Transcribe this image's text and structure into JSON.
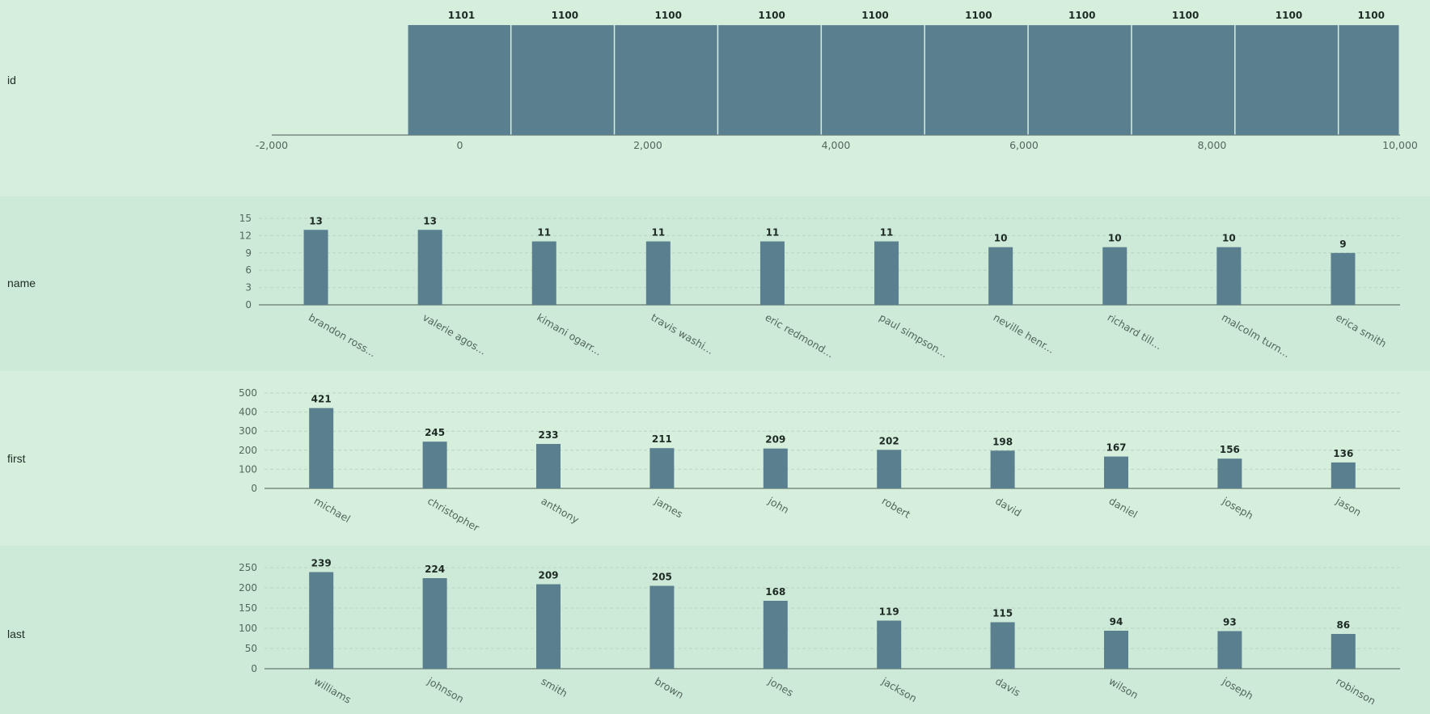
{
  "colors": {
    "bar": "#5a8090",
    "band_a": "#d6efdd",
    "band_b": "#cde9d7"
  },
  "chart_data": [
    {
      "type": "bar",
      "row_label": "id",
      "title": "",
      "xlim": [
        -2000,
        10000
      ],
      "x_ticks": [
        -2000,
        0,
        2000,
        4000,
        6000,
        8000,
        10000
      ],
      "x_tick_labels": [
        "-2,000",
        "0",
        "2,000",
        "4,000",
        "6,000",
        "8,000",
        "10,000"
      ],
      "bins": [
        {
          "start": -550,
          "end": 550,
          "value": 1101
        },
        {
          "start": 550,
          "end": 1650,
          "value": 1100
        },
        {
          "start": 1650,
          "end": 2750,
          "value": 1100
        },
        {
          "start": 2750,
          "end": 3850,
          "value": 1100
        },
        {
          "start": 3850,
          "end": 4950,
          "value": 1100
        },
        {
          "start": 4950,
          "end": 6050,
          "value": 1100
        },
        {
          "start": 6050,
          "end": 7150,
          "value": 1100
        },
        {
          "start": 7150,
          "end": 8250,
          "value": 1100
        },
        {
          "start": 8250,
          "end": 9350,
          "value": 1100
        },
        {
          "start": 9350,
          "end": 10000,
          "value": 1100
        }
      ],
      "grid": false
    },
    {
      "type": "bar",
      "row_label": "name",
      "title": "",
      "categories": [
        "brandon ross...",
        "valerie agos...",
        "kimani ogarr...",
        "travis washi...",
        "eric redmond...",
        "paul simpson...",
        "neville henr...",
        "richard till...",
        "malcolm turn...",
        "erica smith"
      ],
      "values": [
        13,
        13,
        11,
        11,
        11,
        11,
        10,
        10,
        10,
        9
      ],
      "ylim": [
        0,
        15
      ],
      "y_ticks": [
        0,
        3,
        6,
        9,
        12,
        15
      ],
      "grid": true
    },
    {
      "type": "bar",
      "row_label": "first",
      "title": "",
      "categories": [
        "michael",
        "christopher",
        "anthony",
        "james",
        "john",
        "robert",
        "david",
        "daniel",
        "joseph",
        "jason"
      ],
      "values": [
        421,
        245,
        233,
        211,
        209,
        202,
        198,
        167,
        156,
        136
      ],
      "ylim": [
        0,
        500
      ],
      "y_ticks": [
        0,
        100,
        200,
        300,
        400,
        500
      ],
      "grid": true
    },
    {
      "type": "bar",
      "row_label": "last",
      "title": "",
      "categories": [
        "williams",
        "johnson",
        "smith",
        "brown",
        "jones",
        "jackson",
        "davis",
        "wilson",
        "joseph",
        "robinson"
      ],
      "values": [
        239,
        224,
        209,
        205,
        168,
        119,
        115,
        94,
        93,
        86
      ],
      "ylim": [
        0,
        250
      ],
      "y_ticks": [
        0,
        50,
        100,
        150,
        200,
        250
      ],
      "grid": true
    }
  ]
}
